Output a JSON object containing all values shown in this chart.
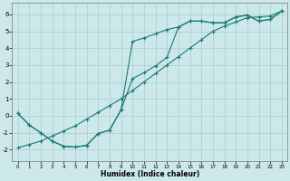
{
  "xlabel": "Humidex (Indice chaleur)",
  "bg_color": "#cce8ea",
  "grid_color": "#aacccc",
  "line_color": "#1a7a6e",
  "xlim": [
    -0.5,
    23.5
  ],
  "ylim": [
    -2.7,
    6.7
  ],
  "xticks": [
    0,
    1,
    2,
    3,
    4,
    5,
    6,
    7,
    8,
    9,
    10,
    11,
    12,
    13,
    14,
    15,
    16,
    17,
    18,
    19,
    20,
    21,
    22,
    23
  ],
  "yticks": [
    -2,
    -1,
    0,
    1,
    2,
    3,
    4,
    5,
    6
  ],
  "line1_x": [
    0,
    1,
    2,
    3,
    4,
    5,
    6,
    7,
    8,
    9,
    10,
    11,
    12,
    13,
    14,
    15,
    16,
    17,
    18,
    19,
    20,
    21,
    22,
    23
  ],
  "line1_y": [
    0.15,
    -0.55,
    -1.0,
    -1.5,
    -1.8,
    -1.85,
    -1.75,
    -1.05,
    -0.85,
    0.35,
    2.2,
    2.55,
    2.95,
    3.45,
    5.25,
    5.6,
    5.6,
    5.5,
    5.5,
    5.85,
    5.95,
    5.6,
    5.7,
    6.2
  ],
  "line2_x": [
    0,
    1,
    2,
    3,
    4,
    5,
    6,
    7,
    8,
    9,
    10,
    11,
    12,
    13,
    14,
    15,
    16,
    17,
    18,
    19,
    20,
    21,
    22,
    23
  ],
  "line2_y": [
    0.15,
    -0.55,
    -1.0,
    -1.5,
    -1.8,
    -1.85,
    -1.75,
    -1.05,
    -0.85,
    0.35,
    4.4,
    4.6,
    4.85,
    5.1,
    5.25,
    5.6,
    5.6,
    5.5,
    5.5,
    5.85,
    5.95,
    5.6,
    5.7,
    6.2
  ],
  "line3_x": [
    0,
    1,
    2,
    3,
    4,
    5,
    6,
    7,
    8,
    9,
    10,
    11,
    12,
    13,
    14,
    15,
    16,
    17,
    18,
    19,
    20,
    21,
    22,
    23
  ],
  "line3_y": [
    -1.9,
    -1.7,
    -1.5,
    -1.2,
    -0.9,
    -0.6,
    -0.2,
    0.2,
    0.6,
    1.0,
    1.5,
    2.0,
    2.5,
    3.0,
    3.5,
    4.0,
    4.5,
    5.0,
    5.3,
    5.55,
    5.8,
    5.85,
    5.9,
    6.2
  ]
}
